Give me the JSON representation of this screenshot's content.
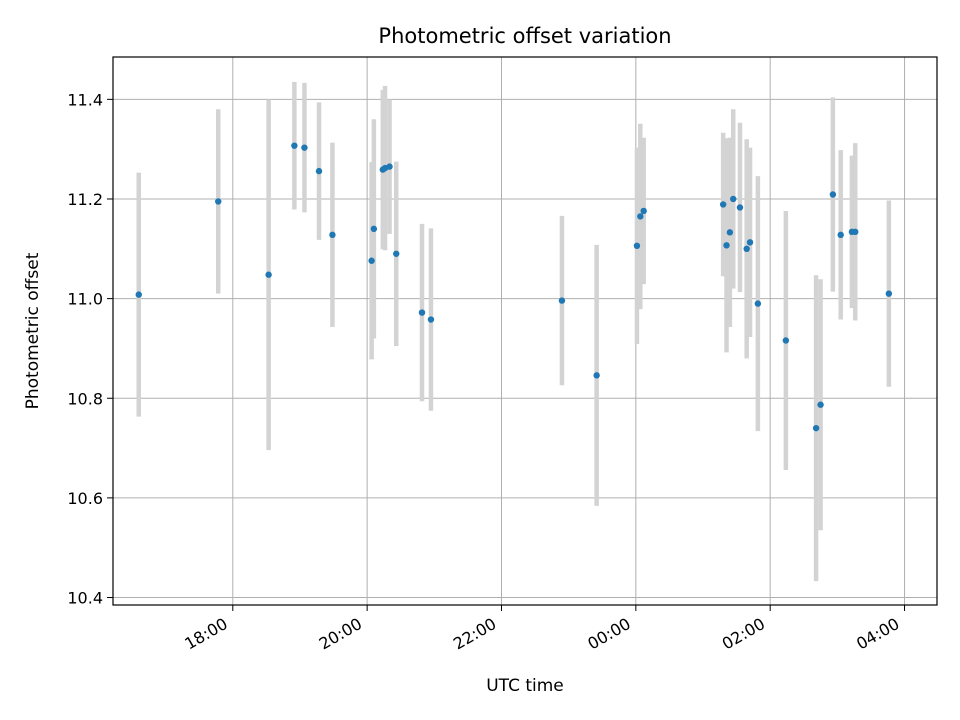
{
  "chart_data": {
    "type": "scatter",
    "title": "Photometric offset variation",
    "xlabel": "UTC time",
    "ylabel": "Photometric offset",
    "x_axis_type": "time",
    "x_ticks": [
      "18:00",
      "20:00",
      "22:00",
      "00:00",
      "02:00",
      "04:00"
    ],
    "y_ticks": [
      "10.4",
      "10.6",
      "10.8",
      "11.0",
      "11.2",
      "11.4"
    ],
    "ylim": [
      10.385,
      11.485
    ],
    "xlim": [
      "16:13",
      "04:29"
    ],
    "grid": true,
    "marker_color": "#1f77b4",
    "errorbar_color": "#d3d3d3",
    "points": [
      {
        "t": "16:36",
        "y": 11.008,
        "err": 0.245
      },
      {
        "t": "17:47",
        "y": 11.195,
        "err": 0.185
      },
      {
        "t": "18:32",
        "y": 11.048,
        "err": 0.352
      },
      {
        "t": "18:55",
        "y": 11.307,
        "err": 0.128
      },
      {
        "t": "19:04",
        "y": 11.303,
        "err": 0.13
      },
      {
        "t": "19:17",
        "y": 11.256,
        "err": 0.138
      },
      {
        "t": "19:29",
        "y": 11.128,
        "err": 0.185
      },
      {
        "t": "20:04",
        "y": 11.076,
        "err": 0.198
      },
      {
        "t": "20:06",
        "y": 11.14,
        "err": 0.22
      },
      {
        "t": "20:14",
        "y": 11.259,
        "err": 0.16
      },
      {
        "t": "20:16",
        "y": 11.262,
        "err": 0.165
      },
      {
        "t": "20:20",
        "y": 11.265,
        "err": 0.135
      },
      {
        "t": "20:26",
        "y": 11.09,
        "err": 0.185
      },
      {
        "t": "20:49",
        "y": 10.972,
        "err": 0.178
      },
      {
        "t": "20:57",
        "y": 10.958,
        "err": 0.183
      },
      {
        "t": "22:54",
        "y": 10.996,
        "err": 0.17
      },
      {
        "t": "23:25",
        "y": 10.846,
        "err": 0.262
      },
      {
        "t": "00:01",
        "y": 11.106,
        "err": 0.197
      },
      {
        "t": "00:04",
        "y": 11.165,
        "err": 0.186
      },
      {
        "t": "00:07",
        "y": 11.176,
        "err": 0.147
      },
      {
        "t": "01:18",
        "y": 11.189,
        "err": 0.144
      },
      {
        "t": "01:21",
        "y": 11.107,
        "err": 0.215
      },
      {
        "t": "01:24",
        "y": 11.133,
        "err": 0.19
      },
      {
        "t": "01:27",
        "y": 11.2,
        "err": 0.18
      },
      {
        "t": "01:33",
        "y": 11.183,
        "err": 0.17
      },
      {
        "t": "01:39",
        "y": 11.1,
        "err": 0.22
      },
      {
        "t": "01:42",
        "y": 11.113,
        "err": 0.19
      },
      {
        "t": "01:49",
        "y": 10.99,
        "err": 0.256
      },
      {
        "t": "02:14",
        "y": 10.916,
        "err": 0.26
      },
      {
        "t": "02:41",
        "y": 10.74,
        "err": 0.307
      },
      {
        "t": "02:45",
        "y": 10.787,
        "err": 0.252
      },
      {
        "t": "02:56",
        "y": 11.209,
        "err": 0.195
      },
      {
        "t": "03:03",
        "y": 11.128,
        "err": 0.17
      },
      {
        "t": "03:13",
        "y": 11.134,
        "err": 0.153
      },
      {
        "t": "03:16",
        "y": 11.134,
        "err": 0.178
      },
      {
        "t": "03:46",
        "y": 11.01,
        "err": 0.187
      }
    ]
  }
}
